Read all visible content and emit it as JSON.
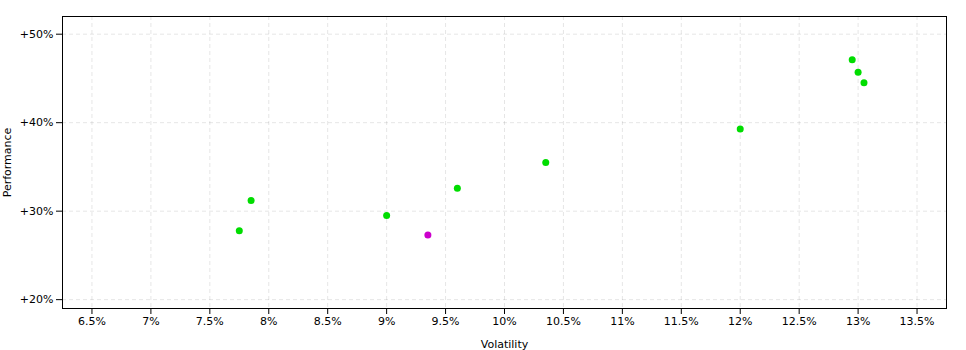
{
  "chart_data": {
    "type": "scatter",
    "x_label": "Volatility",
    "y_label": "Performance",
    "xlim": [
      0.0625,
      0.1375
    ],
    "ylim": [
      0.19,
      0.52
    ],
    "xticks": [
      {
        "value": 0.065,
        "label": "6.5%"
      },
      {
        "value": 0.07,
        "label": "7%"
      },
      {
        "value": 0.075,
        "label": "7.5%"
      },
      {
        "value": 0.08,
        "label": "8%"
      },
      {
        "value": 0.085,
        "label": "8.5%"
      },
      {
        "value": 0.09,
        "label": "9%"
      },
      {
        "value": 0.095,
        "label": "9.5%"
      },
      {
        "value": 0.1,
        "label": "10%"
      },
      {
        "value": 0.105,
        "label": "10.5%"
      },
      {
        "value": 0.11,
        "label": "11%"
      },
      {
        "value": 0.115,
        "label": "11.5%"
      },
      {
        "value": 0.12,
        "label": "12%"
      },
      {
        "value": 0.125,
        "label": "12.5%"
      },
      {
        "value": 0.13,
        "label": "13%"
      },
      {
        "value": 0.135,
        "label": "13.5%"
      }
    ],
    "yticks": [
      {
        "value": 0.2,
        "label": "+20%"
      },
      {
        "value": 0.3,
        "label": "+30%"
      },
      {
        "value": 0.4,
        "label": "+40%"
      },
      {
        "value": 0.5,
        "label": "+50%"
      }
    ],
    "grid": true,
    "series": [
      {
        "color": "#00dd00",
        "x": [
          0.0785,
          0.0775,
          0.09,
          0.096,
          0.1035,
          0.12,
          0.1295,
          0.13,
          0.1305
        ],
        "values": [
          0.312,
          0.278,
          0.295,
          0.326,
          0.355,
          0.393,
          0.471,
          0.457,
          0.445
        ]
      },
      {
        "color": "#cc00cc",
        "x": [
          0.0935
        ],
        "values": [
          0.273
        ]
      }
    ]
  }
}
